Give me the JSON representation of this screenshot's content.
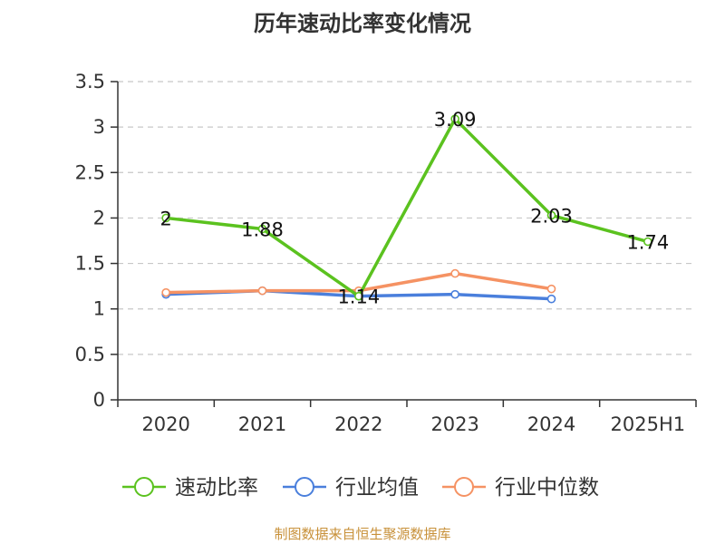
{
  "chart_data": {
    "type": "line",
    "title": "历年速动比率变化情况",
    "categories": [
      "2020",
      "2021",
      "2022",
      "2023",
      "2024",
      "2025H1"
    ],
    "y_ticks": [
      "0",
      "0.5",
      "1",
      "1.5",
      "2",
      "2.5",
      "3",
      "3.5"
    ],
    "ylim": [
      0,
      3.5
    ],
    "grid": true,
    "legend_position": "bottom",
    "series": [
      {
        "name": "速动比率",
        "color": "#5bc21f",
        "values": [
          2.0,
          1.88,
          1.14,
          3.09,
          2.03,
          1.74
        ],
        "labels": [
          "2",
          "1.88",
          "1.14",
          "3.09",
          "2.03",
          "1.74"
        ]
      },
      {
        "name": "行业均值",
        "color": "#4a7fdc",
        "values": [
          1.16,
          1.2,
          1.14,
          1.16,
          1.11,
          null
        ]
      },
      {
        "name": "行业中位数",
        "color": "#f59263",
        "values": [
          1.18,
          1.2,
          1.2,
          1.39,
          1.22,
          null
        ]
      }
    ]
  },
  "source": "制图数据来自恒生聚源数据库"
}
